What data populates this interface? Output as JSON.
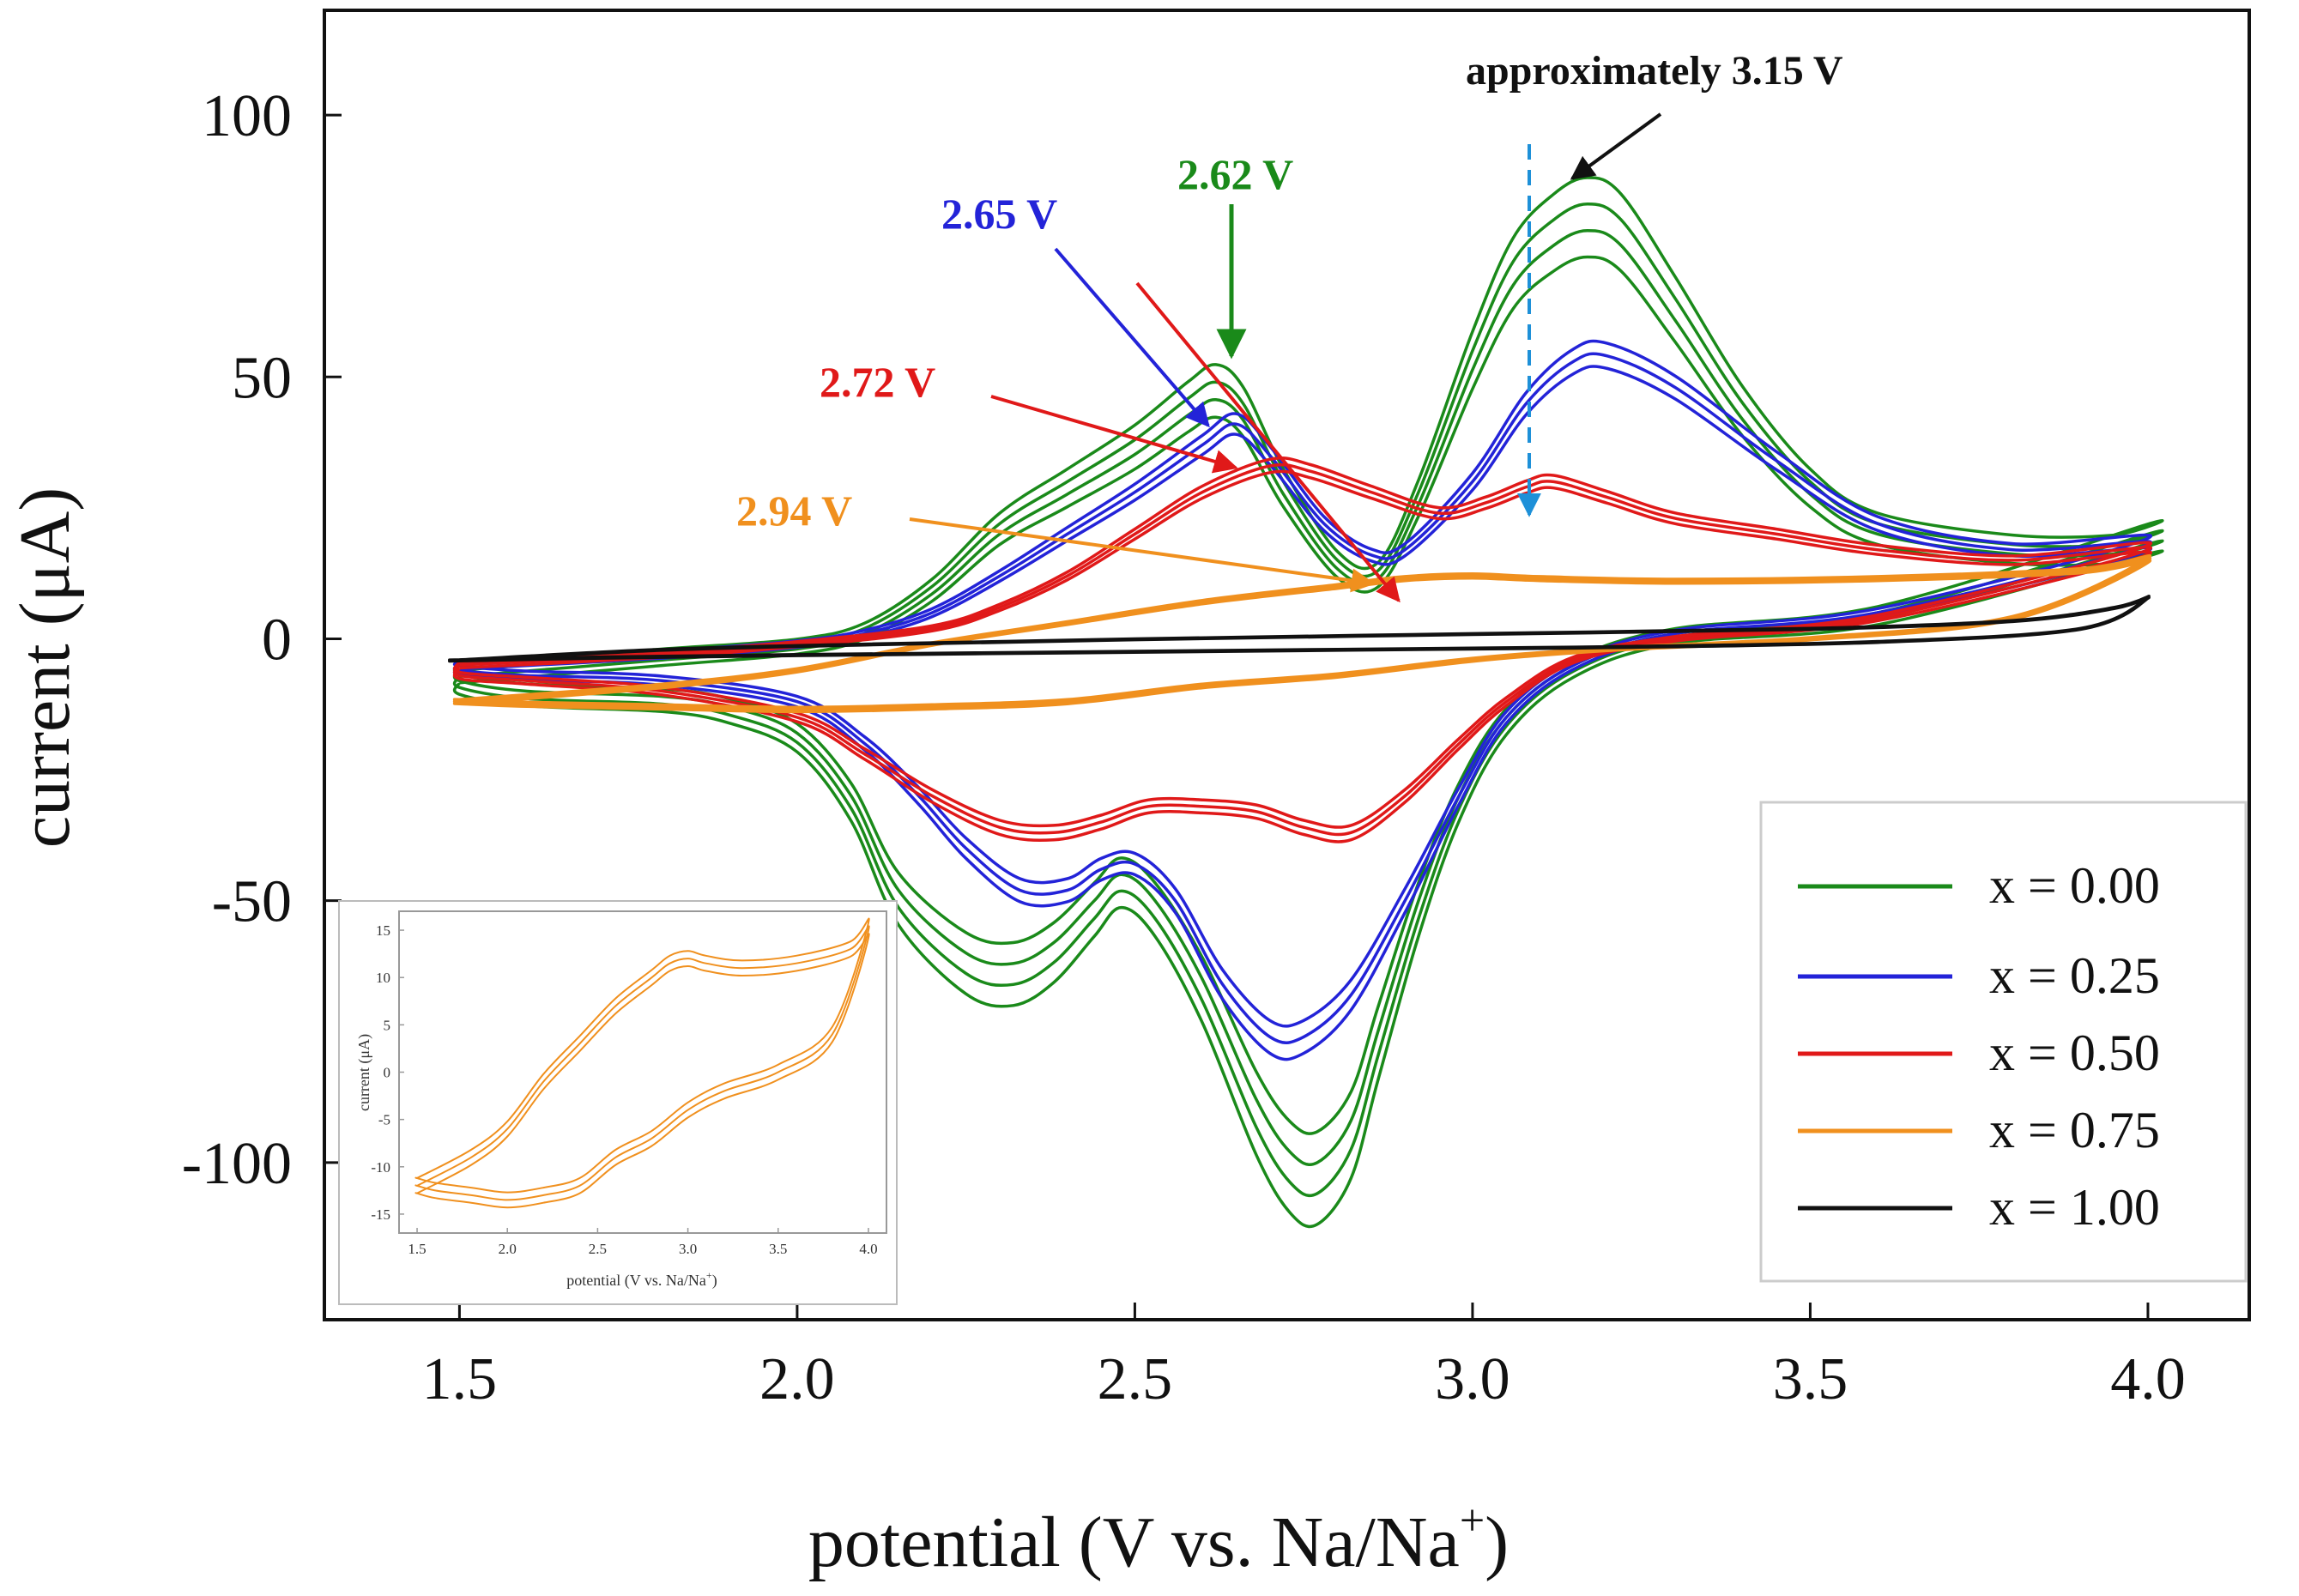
{
  "chart_data": {
    "type": "line",
    "title": "",
    "xlabel": "potential (V vs. Na/Na",
    "xlabel_sup": "+",
    "xlabel_close": ")",
    "ylabel": "current  (μA)",
    "xlim": [
      1.3,
      4.15
    ],
    "ylim": [
      -130,
      120
    ],
    "x_ticks": [
      1.5,
      2.0,
      2.5,
      3.0,
      3.5,
      4.0
    ],
    "x_tick_labels": [
      "1.5",
      "2.0",
      "2.5",
      "3.0",
      "3.5",
      "4.0"
    ],
    "y_ticks": [
      -100,
      -50,
      0,
      50,
      100
    ],
    "y_tick_labels": [
      "-100",
      "-50",
      "0",
      "50",
      "100"
    ],
    "grid": false,
    "legend_position": "bottom-right",
    "series": [
      {
        "name": "x = 0.00",
        "color": "#1a8a1a",
        "anodic_x": [
          1.5,
          1.8,
          2.0,
          2.1,
          2.2,
          2.3,
          2.4,
          2.5,
          2.58,
          2.62,
          2.66,
          2.72,
          2.8,
          2.86,
          2.92,
          3.0,
          3.06,
          3.12,
          3.17,
          3.22,
          3.3,
          3.4,
          3.5,
          3.6,
          3.8,
          3.95,
          4.0
        ],
        "anodic_y": [
          -6,
          -3,
          -1,
          2,
          10,
          22,
          30,
          38,
          46,
          49,
          45,
          30,
          15,
          13,
          28,
          55,
          72,
          80,
          83,
          80,
          65,
          45,
          30,
          22,
          18,
          18,
          20
        ],
        "cathodic_x": [
          4.0,
          3.6,
          3.3,
          3.15,
          3.05,
          2.98,
          2.92,
          2.86,
          2.82,
          2.77,
          2.73,
          2.68,
          2.6,
          2.53,
          2.48,
          2.44,
          2.38,
          2.32,
          2.25,
          2.15,
          2.08,
          2.0,
          1.9,
          1.8,
          1.6,
          1.5
        ],
        "cathodic_y": [
          12,
          5,
          1,
          -5,
          -15,
          -30,
          -50,
          -75,
          -92,
          -100,
          -98,
          -88,
          -65,
          -50,
          -45,
          -50,
          -58,
          -62,
          -60,
          -48,
          -30,
          -18,
          -13,
          -11,
          -10,
          -8
        ],
        "offsets": [
          0,
          -3,
          -6,
          3
        ]
      },
      {
        "name": "x = 0.25",
        "color": "#2323d8",
        "anodic_x": [
          1.5,
          1.8,
          2.0,
          2.1,
          2.2,
          2.3,
          2.4,
          2.5,
          2.6,
          2.65,
          2.7,
          2.78,
          2.85,
          2.9,
          3.0,
          3.08,
          3.15,
          3.2,
          3.3,
          3.45,
          3.6,
          3.8,
          4.0
        ],
        "anodic_y": [
          -5,
          -3,
          -1,
          1,
          5,
          12,
          20,
          28,
          37,
          41,
          35,
          22,
          16,
          17,
          30,
          45,
          53,
          54,
          48,
          34,
          22,
          17,
          18
        ],
        "cathodic_x": [
          4.0,
          3.6,
          3.3,
          3.15,
          3.05,
          2.98,
          2.9,
          2.82,
          2.75,
          2.7,
          2.63,
          2.56,
          2.5,
          2.45,
          2.4,
          2.33,
          2.25,
          2.18,
          2.1,
          2.0,
          1.8,
          1.6,
          1.5
        ],
        "cathodic_y": [
          10,
          5,
          1,
          -5,
          -15,
          -30,
          -50,
          -68,
          -76,
          -76,
          -66,
          -50,
          -43,
          -44,
          -48,
          -48,
          -40,
          -30,
          -20,
          -12,
          -8,
          -7,
          -6
        ],
        "offsets": [
          0,
          -2,
          2
        ]
      },
      {
        "name": "x = 0.50",
        "color": "#e01919",
        "anodic_x": [
          1.5,
          1.8,
          2.0,
          2.2,
          2.3,
          2.4,
          2.5,
          2.6,
          2.7,
          2.76,
          2.85,
          2.95,
          3.02,
          3.08,
          3.12,
          3.2,
          3.3,
          3.45,
          3.6,
          3.8,
          4.0
        ],
        "anodic_y": [
          -5,
          -3,
          -1,
          2,
          6,
          12,
          20,
          28,
          33,
          32,
          28,
          24,
          26,
          29,
          30,
          27,
          23,
          20,
          17,
          15,
          17
        ],
        "cathodic_x": [
          4.0,
          3.6,
          3.3,
          3.15,
          3.05,
          2.98,
          2.9,
          2.82,
          2.75,
          2.68,
          2.6,
          2.52,
          2.45,
          2.38,
          2.3,
          2.2,
          2.1,
          2.0,
          1.8,
          1.6,
          1.5
        ],
        "cathodic_y": [
          8,
          4,
          0,
          -4,
          -12,
          -20,
          -30,
          -37,
          -36,
          -33,
          -32,
          -32,
          -35,
          -37,
          -36,
          -30,
          -22,
          -15,
          -10,
          -8,
          -7
        ],
        "offsets": [
          0,
          -1.5,
          1.5
        ]
      },
      {
        "name": "x = 0.75",
        "color": "#f0901e",
        "anodic_x": [
          1.5,
          1.8,
          2.0,
          2.2,
          2.4,
          2.6,
          2.8,
          2.9,
          3.0,
          3.1,
          3.3,
          3.6,
          3.9,
          4.0
        ],
        "anodic_y": [
          -12,
          -9,
          -6,
          -1,
          3,
          7,
          10,
          11.5,
          12,
          11.5,
          11,
          11.5,
          13,
          15
        ],
        "cathodic_x": [
          4.0,
          3.8,
          3.5,
          3.2,
          3.0,
          2.8,
          2.6,
          2.4,
          2.2,
          2.0,
          1.8,
          1.6,
          1.5
        ],
        "cathodic_y": [
          10,
          4,
          0,
          -2,
          -4,
          -7,
          -9,
          -12,
          -13,
          -13.5,
          -13,
          -12.5,
          -12
        ],
        "offsets": [
          0,
          -0.8,
          0.8
        ]
      },
      {
        "name": "x = 1.00",
        "color": "#111111",
        "anodic_x": [
          1.5,
          1.8,
          2.1,
          2.5,
          3.0,
          3.5,
          3.8,
          3.95,
          4.0
        ],
        "anodic_y": [
          -4,
          -2,
          -1,
          0,
          1,
          2,
          3.5,
          6,
          8
        ],
        "cathodic_x": [
          4.0,
          3.9,
          3.6,
          3.2,
          2.8,
          2.4,
          2.0,
          1.7,
          1.5
        ],
        "cathodic_y": [
          6,
          2,
          -0.5,
          -1.5,
          -2,
          -2.5,
          -3,
          -3.5,
          -4
        ],
        "offsets": [
          0,
          -0.6
        ]
      }
    ],
    "annotations": [
      {
        "text": "approximately 3.15 V",
        "color": "#111111"
      },
      {
        "text": "2.62 V",
        "color": "#1a8a1a"
      },
      {
        "text": "2.65 V",
        "color": "#2323d8"
      },
      {
        "text": "2.72 V",
        "color": "#e01919"
      },
      {
        "text": "2.94 V",
        "color": "#f0901e"
      }
    ],
    "inset": {
      "type": "line",
      "xlabel": "potential (V vs. Na/Na",
      "xlabel_sup": "+",
      "xlabel_close": ")",
      "ylabel": "current  (μA)",
      "xlim": [
        1.4,
        4.1
      ],
      "ylim": [
        -17,
        17
      ],
      "x_ticks": [
        1.5,
        2.0,
        2.5,
        3.0,
        3.5,
        4.0
      ],
      "x_tick_labels": [
        "1.5",
        "2.0",
        "2.5",
        "3.0",
        "3.5",
        "4.0"
      ],
      "y_ticks": [
        -15,
        -10,
        -5,
        0,
        5,
        10,
        15
      ],
      "y_tick_labels": [
        "-15",
        "-10",
        "-5",
        "0",
        "5",
        "10",
        "15"
      ],
      "color": "#f0901e",
      "anodic_x": [
        1.5,
        1.8,
        2.0,
        2.2,
        2.4,
        2.6,
        2.8,
        2.9,
        3.0,
        3.1,
        3.3,
        3.6,
        3.9,
        4.0
      ],
      "anodic_y": [
        -12,
        -9,
        -6,
        -1,
        3,
        7,
        10,
        11.5,
        12,
        11.5,
        11,
        11.5,
        13,
        15
      ],
      "cathodic_x": [
        4.0,
        3.8,
        3.5,
        3.2,
        3.0,
        2.8,
        2.6,
        2.4,
        2.2,
        2.0,
        1.8,
        1.6,
        1.5
      ],
      "cathodic_y": [
        10,
        4,
        0,
        -2,
        -4,
        -7,
        -9,
        -12,
        -13,
        -13.5,
        -13,
        -12.5,
        -12
      ],
      "offsets": [
        0,
        -0.8,
        0.8
      ]
    }
  }
}
